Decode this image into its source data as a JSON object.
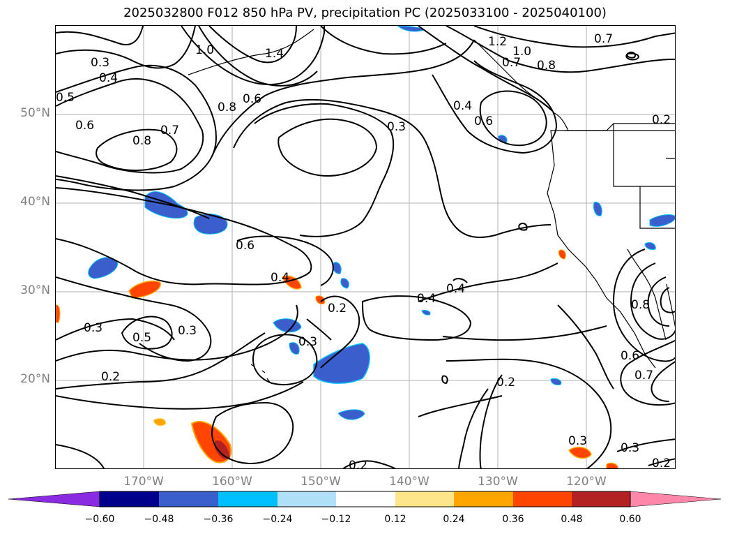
{
  "title": "2025032800 F012 850 hPa PV, precipitation PC (2025033100 - 2025040100)",
  "lat_labels": [
    "50°N",
    "40°N",
    "30°N",
    "20°N"
  ],
  "lon_labels": [
    "170°W",
    "160°W",
    "150°W",
    "140°W",
    "130°W",
    "120°W"
  ],
  "contour_labels": [
    "0.3",
    "0.4",
    "0.5",
    "0.6",
    "0.8",
    "0.7",
    "1.0",
    "1.4",
    "0.8",
    "0.6",
    "1.2",
    "1.0",
    "0.7",
    "0.7",
    "0.8",
    "0.4",
    "0.6",
    "0.3",
    "0.6",
    "0.4",
    "0.4",
    "0.4",
    "0.2",
    "0.3",
    "0.5",
    "0.3",
    "0.3",
    "0.2",
    "0.2",
    "0.6",
    "0.7",
    "0.2",
    "0.3",
    "0.3",
    "0.2",
    "0.2",
    "0.8"
  ],
  "colorbar": {
    "ticks": [
      "−0.60",
      "−0.48",
      "−0.36",
      "−0.24",
      "−0.12",
      "0.12",
      "0.24",
      "0.36",
      "0.48",
      "0.60"
    ],
    "colors": [
      "#8a2be2",
      "#00008b",
      "#3a5fcd",
      "#00bfff",
      "#b0e0f8",
      "#ffffff",
      "#fde68a",
      "#ffa500",
      "#ff4500",
      "#b22222",
      "#ff88aa"
    ]
  },
  "colors": {
    "negative_strong": "#3a5fcd",
    "negative_light": "#00bfff",
    "positive_light": "#ffa500",
    "positive_strong": "#ff4500",
    "positive_max": "#b22222",
    "grid": "#b0b0b0",
    "contour": "#000000"
  }
}
